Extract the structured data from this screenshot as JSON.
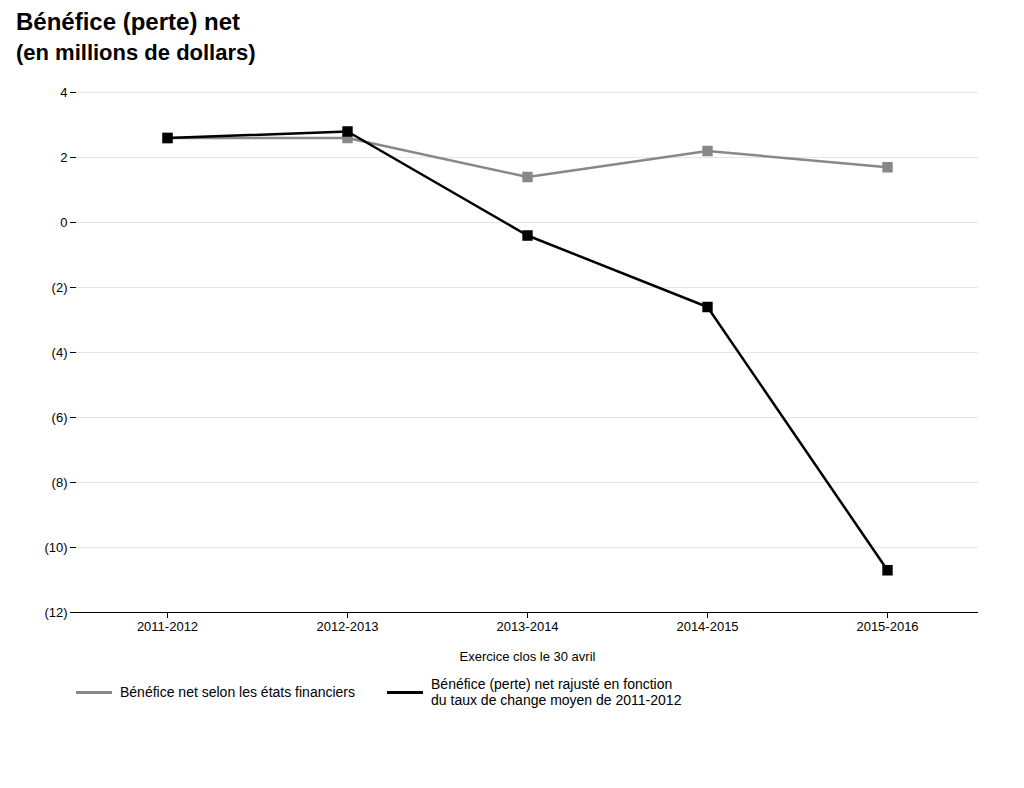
{
  "chart_data": {
    "type": "line",
    "title": "Bénéfice (perte) net",
    "subtitle": "(en millions de dollars)",
    "xlabel": "Exercice clos le 30 avril",
    "categories": [
      "2011-2012",
      "2012-2013",
      "2013-2014",
      "2014-2015",
      "2015-2016"
    ],
    "series": [
      {
        "name": "Bénéfice net selon les états financiers",
        "color": "#888888",
        "marker": "square",
        "values": [
          2.6,
          2.6,
          1.4,
          2.2,
          1.7
        ]
      },
      {
        "name": "Bénéfice (perte) net rajusté en fonction\ndu taux de change moyen de 2011-2012",
        "color": "#000000",
        "marker": "square",
        "values": [
          2.6,
          2.8,
          -0.4,
          -2.6,
          -10.7
        ]
      }
    ],
    "ylim": [
      -12,
      4
    ],
    "yticks": [
      4,
      2,
      0,
      {
        "value": -2,
        "label": "(2)"
      },
      {
        "value": -4,
        "label": "(4)"
      },
      {
        "value": -6,
        "label": "(6)"
      },
      {
        "value": -8,
        "label": "(8)"
      },
      {
        "value": -10,
        "label": "(10)"
      },
      {
        "value": -12,
        "label": "(12)"
      }
    ],
    "grid": true,
    "legend": "lower left"
  }
}
